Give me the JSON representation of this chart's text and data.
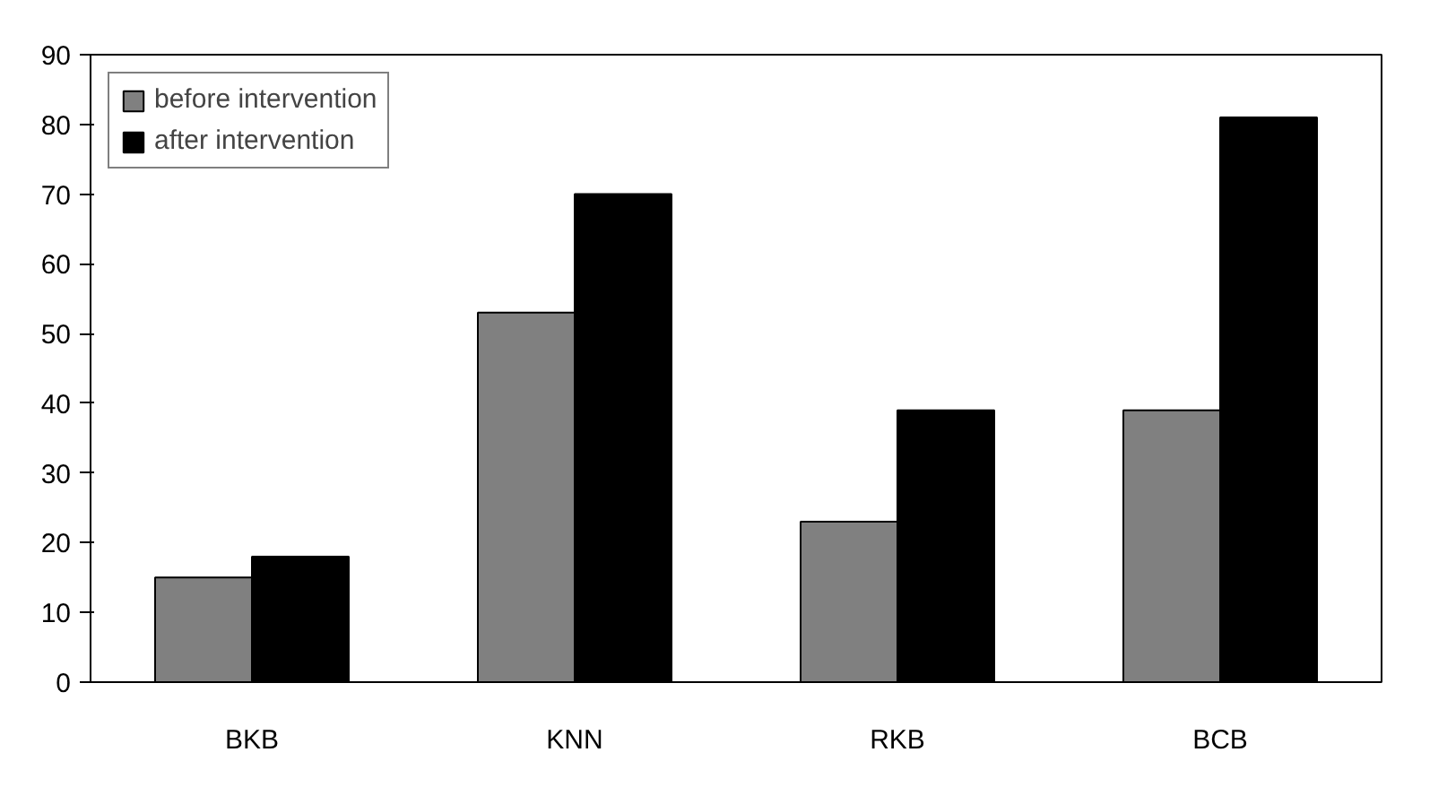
{
  "chart_data": {
    "type": "bar",
    "categories": [
      "BKB",
      "KNN",
      "RKB",
      "BCB"
    ],
    "series": [
      {
        "name": "before intervention",
        "color": "#808080",
        "values": [
          15,
          53,
          23,
          39
        ]
      },
      {
        "name": "after intervention",
        "color": "#000000",
        "values": [
          18,
          70,
          39,
          81
        ]
      }
    ],
    "ylim": [
      0,
      90
    ],
    "yticks": [
      0,
      10,
      20,
      30,
      40,
      50,
      60,
      70,
      80,
      90
    ],
    "grid": false,
    "legend": "top left"
  }
}
